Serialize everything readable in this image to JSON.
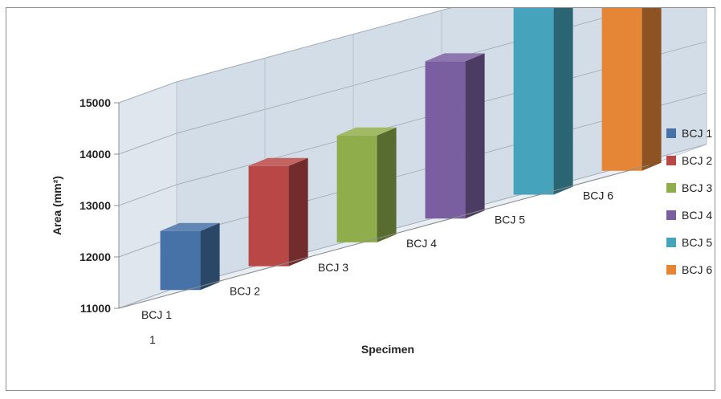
{
  "chart_data": {
    "type": "bar",
    "title": "",
    "xlabel": "Specimen",
    "ylabel": "Area (mm²)",
    "ylim": [
      11000,
      15000
    ],
    "yticks": [
      11000,
      12000,
      13000,
      14000,
      15000
    ],
    "depth_axis_label": "1",
    "grid": true,
    "legend_position": "right",
    "categories": [
      "BCJ 1",
      "BCJ 2",
      "BCJ 3",
      "BCJ 4",
      "BCJ 5",
      "BCJ 6"
    ],
    "values": [
      12150,
      12950,
      13080,
      14060,
      14780,
      14880
    ],
    "series_colors": [
      "#4672a8",
      "#b84746",
      "#8fae4b",
      "#7a5fa0",
      "#45a3bb",
      "#e58637"
    ],
    "legend": [
      "BCJ 1",
      "BCJ 2",
      "BCJ 3",
      "BCJ 4",
      "BCJ 5",
      "BCJ 6"
    ]
  }
}
